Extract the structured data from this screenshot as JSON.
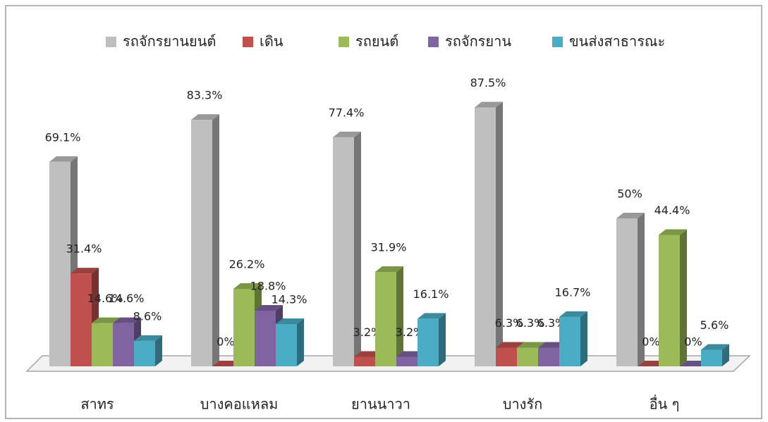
{
  "chart_data": {
    "type": "bar3d",
    "categories": [
      "สาทร",
      "บางคอแหลม",
      "ยานนาวา",
      "บางรัก",
      "อื่น ๆ"
    ],
    "series": [
      {
        "name": "รถจักรยานยนต์",
        "color": "#bfbfbf",
        "values": [
          69.1,
          83.3,
          77.4,
          87.5,
          50
        ],
        "value_labels": [
          "69.1%",
          "83.3%",
          "77.4%",
          "87.5%",
          "50%"
        ]
      },
      {
        "name": "เดิน",
        "color": "#c0504d",
        "values": [
          31.4,
          0,
          3.2,
          6.3,
          0
        ],
        "value_labels": [
          "31.4%",
          "0%",
          "3.2%",
          "6.3%",
          "0%"
        ]
      },
      {
        "name": "รถยนต์",
        "color": "#9bbb59",
        "values": [
          14.6,
          26.2,
          31.9,
          6.3,
          44.4
        ],
        "value_labels": [
          "14.6%",
          "26.2%",
          "31.9%",
          "6.3%",
          "44.4%"
        ]
      },
      {
        "name": "รถจักรยาน",
        "color": "#8064a2",
        "values": [
          14.6,
          18.8,
          3.2,
          6.3,
          0
        ],
        "value_labels": [
          "14.6%",
          "18.8%",
          "3.2%",
          "6.3%",
          "0%"
        ]
      },
      {
        "name": "ขนส่งสาธารณะ",
        "color": "#4bacc6",
        "values": [
          8.6,
          14.3,
          16.1,
          16.7,
          5.6
        ],
        "value_labels": [
          "8.6%",
          "14.3%",
          "16.1%",
          "16.7%",
          "5.6%"
        ]
      }
    ],
    "legend": "top"
  }
}
